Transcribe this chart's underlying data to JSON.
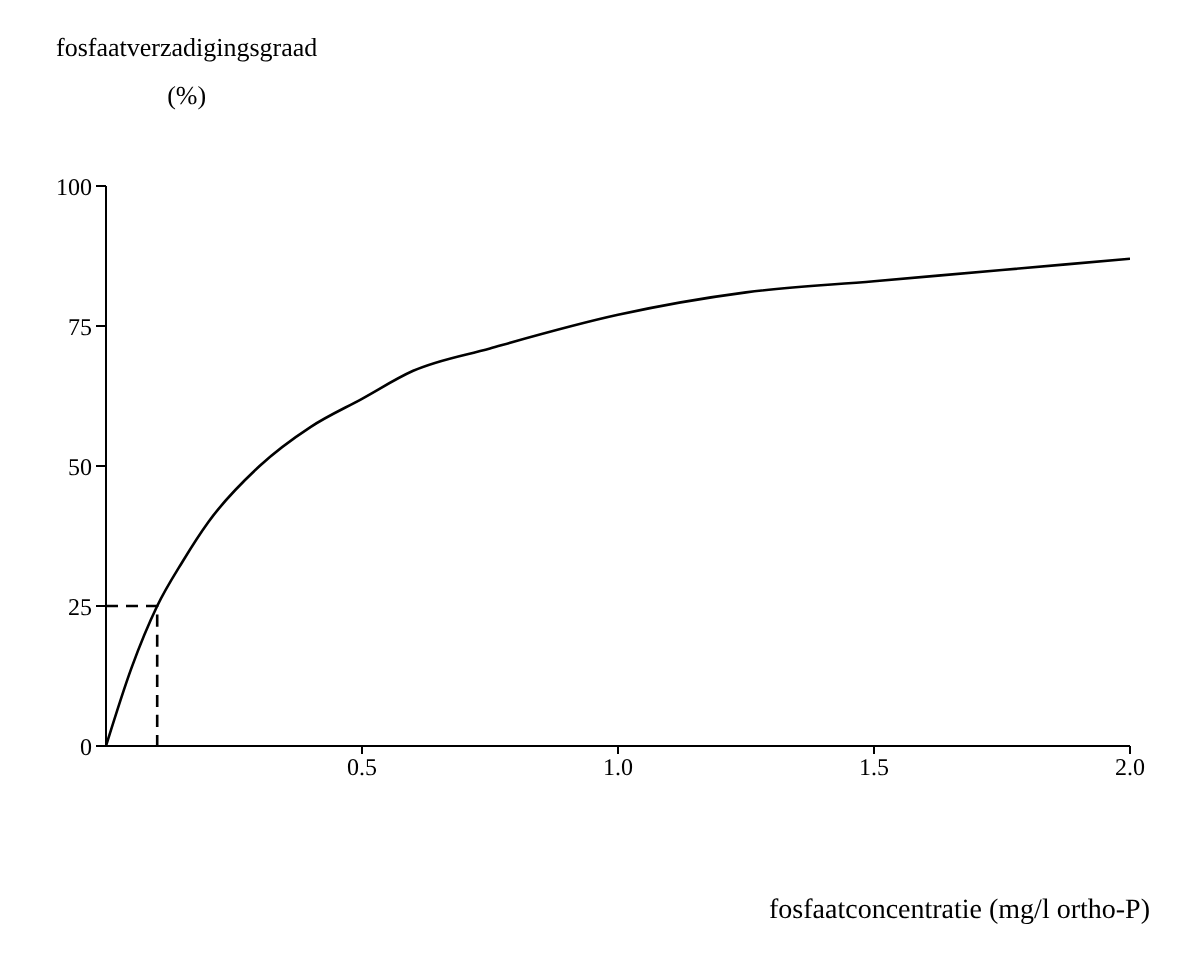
{
  "chart_data": {
    "type": "line",
    "ylabel": "fosfaatverzadigingsgraad (%)",
    "xlabel": "fosfaatconcentratie (mg/l ortho-P)",
    "xlim": [
      0,
      2
    ],
    "xticks": [
      0.5,
      {
        "value": 1,
        "label": "1.0"
      },
      1.5,
      {
        "value": 2,
        "label": "2.0"
      }
    ],
    "ylim": [
      0,
      100
    ],
    "yticks": [
      0,
      25,
      50,
      75,
      100
    ],
    "marker": "none",
    "series": [
      {
        "color": "#000000",
        "line_style": "solid",
        "x": [
          0,
          0.05,
          0.1,
          0.15,
          0.2,
          0.3,
          0.4,
          0.5,
          0.6,
          0.75,
          1.0,
          1.25,
          1.5,
          1.75,
          2.0
        ],
        "values": [
          0,
          14,
          25,
          33,
          40,
          50,
          57,
          62,
          67,
          71,
          77,
          81,
          83,
          85,
          87
        ]
      },
      {
        "color": "#000000",
        "line_style": "dashed",
        "x": [
          0,
          0.1,
          0.1
        ],
        "values": [
          25,
          25,
          0
        ]
      }
    ]
  }
}
